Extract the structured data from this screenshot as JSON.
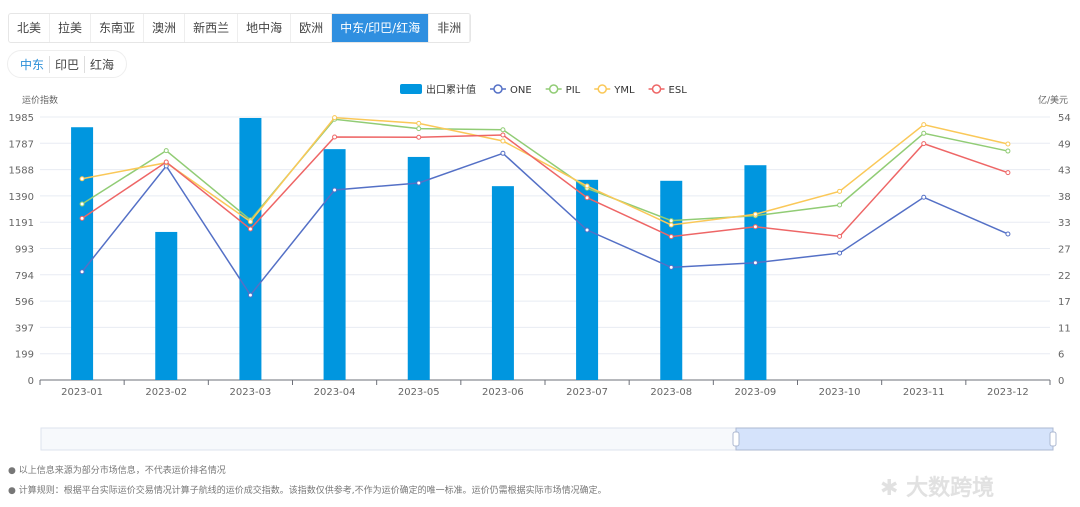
{
  "tabs": [
    "北美",
    "拉美",
    "东南亚",
    "澳洲",
    "新西兰",
    "地中海",
    "欧洲",
    "中东/印巴/红海",
    "非洲"
  ],
  "active_tab": 7,
  "subtabs": [
    "中东",
    "印巴",
    "红海"
  ],
  "colors": {
    "bar": "#0096df",
    "ONE": "#5470c6",
    "PIL": "#91cc75",
    "YML": "#fac858",
    "ESL": "#ee6666",
    "active_tab": "#2f8fe0"
  },
  "chart_data": {
    "type": "bar+line",
    "categories": [
      "2023-01",
      "2023-02",
      "2023-03",
      "2023-04",
      "2023-05",
      "2023-06",
      "2023-07",
      "2023-08",
      "2023-09",
      "2023-10",
      "2023-11",
      "2023-12"
    ],
    "ylabel_left": "运价指数",
    "ylabel_right": "亿/美元",
    "left_ticks": [
      "0",
      "199",
      "397",
      "596",
      "794",
      "993",
      "1191",
      "1390",
      "1588",
      "1787",
      "1985"
    ],
    "right_ticks": [
      "0",
      "6",
      "11",
      "17",
      "22",
      "27",
      "33",
      "38",
      "43",
      "49",
      "54"
    ],
    "ylim_left": [
      0,
      1985
    ],
    "ylim_right": [
      0,
      54
    ],
    "legend_position": "top-center",
    "grid": true,
    "bar_series": {
      "name": "出口累计值",
      "axis": "right",
      "values": [
        51.9,
        30.4,
        53.8,
        47.4,
        45.8,
        39.8,
        41.1,
        40.9,
        44.1,
        null,
        null,
        null
      ]
    },
    "series": [
      {
        "name": "ONE",
        "values": [
          817,
          1615,
          641,
          1434,
          1487,
          1711,
          1132,
          850,
          885,
          958,
          1379,
          1102
        ]
      },
      {
        "name": "PIL",
        "values": [
          1328,
          1731,
          1208,
          1968,
          1897,
          1889,
          1447,
          1203,
          1240,
          1321,
          1862,
          1728
        ]
      },
      {
        "name": "YML",
        "values": [
          1519,
          1640,
          1195,
          1980,
          1937,
          1804,
          1464,
          1170,
          1251,
          1424,
          1927,
          1781
        ]
      },
      {
        "name": "ESL",
        "values": [
          1220,
          1645,
          1140,
          1834,
          1832,
          1849,
          1376,
          1082,
          1157,
          1084,
          1784,
          1565
        ]
      }
    ]
  },
  "notes": [
    "以上信息来源为部分市场信息，不代表运价排名情况",
    "计算规则：根据平台实际运价交易情况计算子航线的运价成交指数。该指数仅供参考,不作为运价确定的唯一标准。运价仍需根据实际市场情况确定。"
  ],
  "watermark": "大数跨境"
}
